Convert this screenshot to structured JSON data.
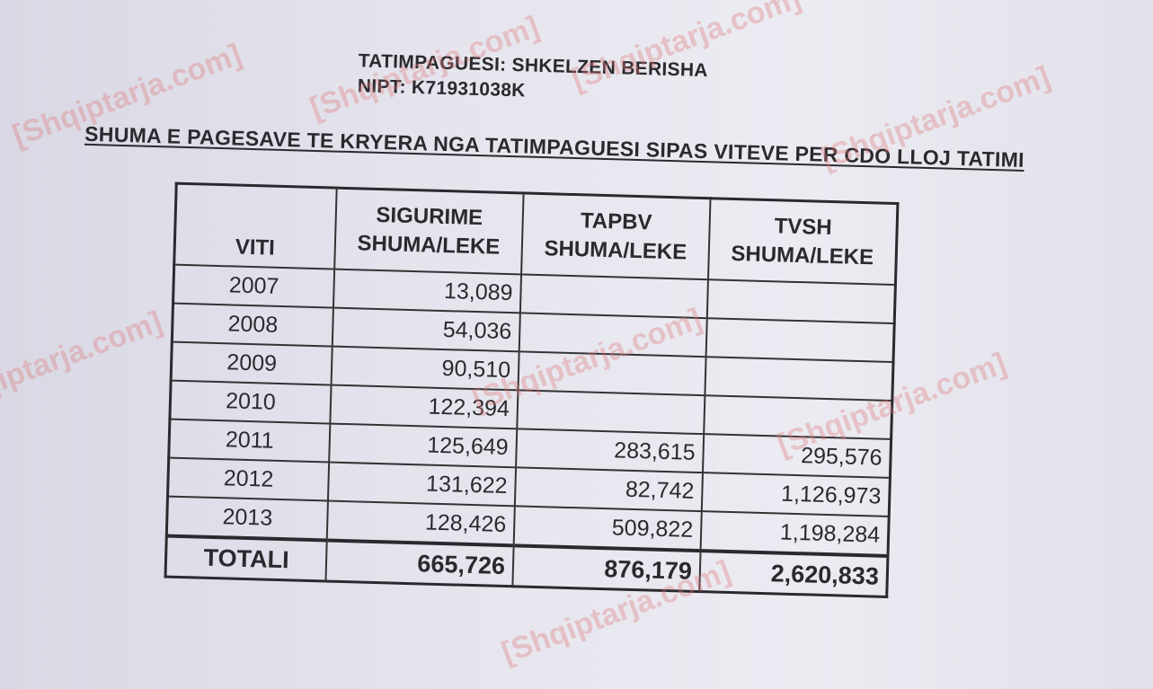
{
  "header": {
    "taxpayer": "TATIMPAGUESI: SHKELZEN BERISHA",
    "nipt": "NIPT: K71931038K",
    "title": "SHUMA E PAGESAVE TE KRYERA NGA TATIMPAGUESI SIPAS VITEVE PER CDO LLOJ TATIMI"
  },
  "table": {
    "headers": [
      {
        "line1": "",
        "line2": "VITI"
      },
      {
        "line1": "SIGURIME",
        "line2": "SHUMA/LEKE"
      },
      {
        "line1": "TAPBV",
        "line2": "SHUMA/LEKE"
      },
      {
        "line1": "TVSH",
        "line2": "SHUMA/LEKE"
      }
    ],
    "rows": [
      [
        "2007",
        "13,089",
        "",
        ""
      ],
      [
        "2008",
        "54,036",
        "",
        ""
      ],
      [
        "2009",
        "90,510",
        "",
        ""
      ],
      [
        "2010",
        "122,394",
        "",
        ""
      ],
      [
        "2011",
        "125,649",
        "283,615",
        "295,576"
      ],
      [
        "2012",
        "131,622",
        "82,742",
        "1,126,973"
      ],
      [
        "2013",
        "128,426",
        "509,822",
        "1,198,284"
      ]
    ],
    "total": [
      "TOTALI",
      "665,726",
      "876,179",
      "2,620,833"
    ]
  },
  "watermark": "[Shqiptarja.com]"
}
